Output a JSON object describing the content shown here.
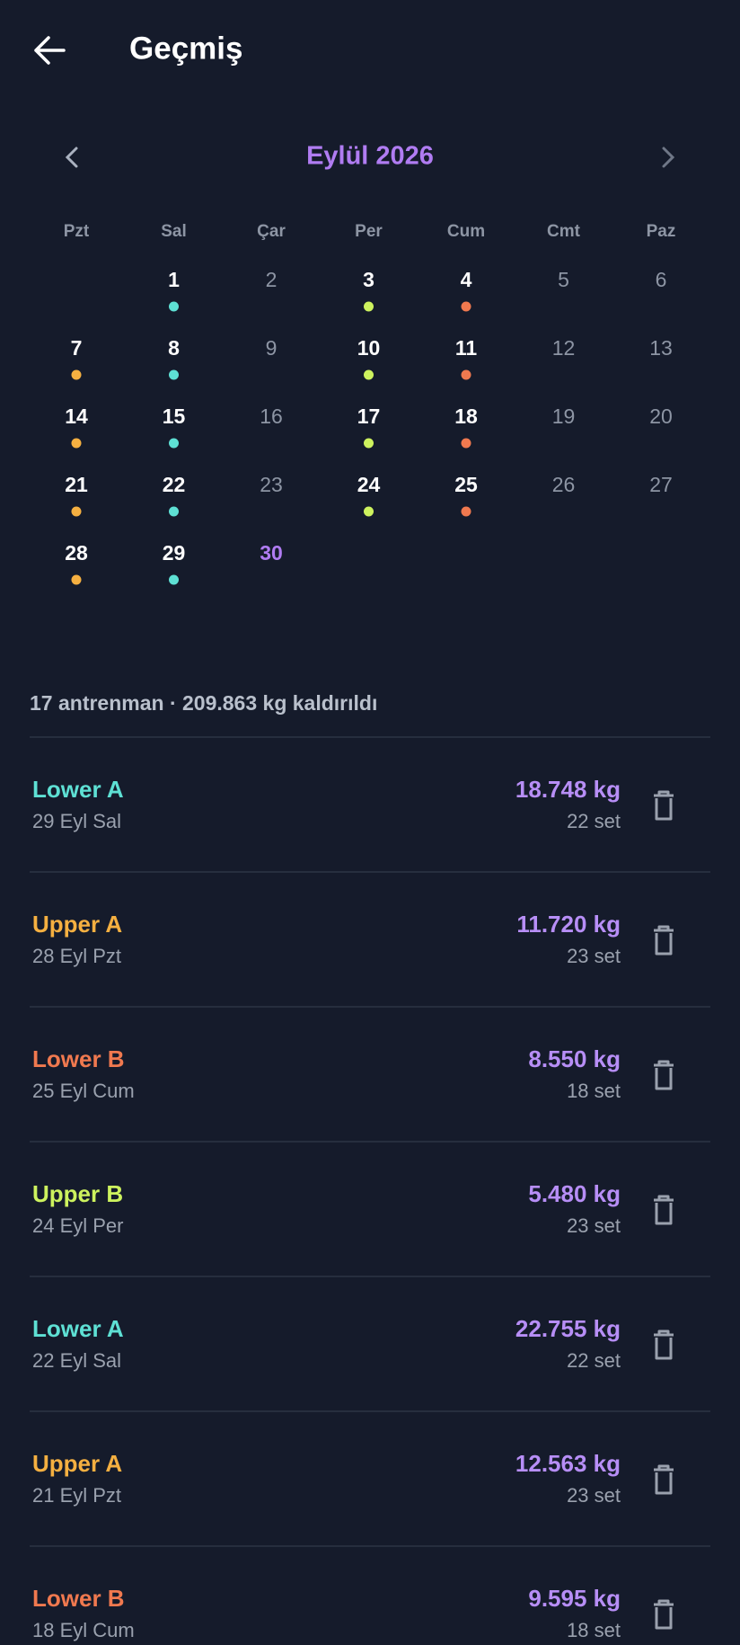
{
  "header": {
    "title": "Geçmiş"
  },
  "calendar": {
    "month": "Eylül 2026",
    "weekdays": [
      "Pzt",
      "Sal",
      "Çar",
      "Per",
      "Cum",
      "Cmt",
      "Paz"
    ],
    "weeks": [
      [
        null,
        {
          "day": "1",
          "dot": "#5ee0d4"
        },
        {
          "day": "2"
        },
        {
          "day": "3",
          "dot": "#cdf25e"
        },
        {
          "day": "4",
          "dot": "#f0794f"
        },
        {
          "day": "5"
        },
        {
          "day": "6"
        }
      ],
      [
        {
          "day": "7",
          "dot": "#f5b041"
        },
        {
          "day": "8",
          "dot": "#5ee0d4"
        },
        {
          "day": "9"
        },
        {
          "day": "10",
          "dot": "#cdf25e"
        },
        {
          "day": "11",
          "dot": "#f0794f"
        },
        {
          "day": "12"
        },
        {
          "day": "13"
        }
      ],
      [
        {
          "day": "14",
          "dot": "#f5b041"
        },
        {
          "day": "15",
          "dot": "#5ee0d4"
        },
        {
          "day": "16"
        },
        {
          "day": "17",
          "dot": "#cdf25e"
        },
        {
          "day": "18",
          "dot": "#f0794f"
        },
        {
          "day": "19"
        },
        {
          "day": "20"
        }
      ],
      [
        {
          "day": "21",
          "dot": "#f5b041"
        },
        {
          "day": "22",
          "dot": "#5ee0d4"
        },
        {
          "day": "23"
        },
        {
          "day": "24",
          "dot": "#cdf25e"
        },
        {
          "day": "25",
          "dot": "#f0794f"
        },
        {
          "day": "26"
        },
        {
          "day": "27"
        }
      ],
      [
        {
          "day": "28",
          "dot": "#f5b041"
        },
        {
          "day": "29",
          "dot": "#5ee0d4"
        },
        {
          "day": "30",
          "today": true
        }
      ]
    ]
  },
  "summary": "17 antrenman · 209.863 kg kaldırıldı",
  "sessions": [
    {
      "name": "Lower A",
      "color": "#5ee0d4",
      "date": "29 Eyl Sal",
      "volume": "18.748 kg",
      "sets": "22 set"
    },
    {
      "name": "Upper A",
      "color": "#f5b041",
      "date": "28 Eyl Pzt",
      "volume": "11.720 kg",
      "sets": "23 set"
    },
    {
      "name": "Lower B",
      "color": "#f0794f",
      "date": "25 Eyl Cum",
      "volume": "8.550 kg",
      "sets": "18 set"
    },
    {
      "name": "Upper B",
      "color": "#cdf25e",
      "date": "24 Eyl Per",
      "volume": "5.480 kg",
      "sets": "23 set"
    },
    {
      "name": "Lower A",
      "color": "#5ee0d4",
      "date": "22 Eyl Sal",
      "volume": "22.755 kg",
      "sets": "22 set"
    },
    {
      "name": "Upper A",
      "color": "#f5b041",
      "date": "21 Eyl Pzt",
      "volume": "12.563 kg",
      "sets": "23 set"
    },
    {
      "name": "Lower B",
      "color": "#f0794f",
      "date": "18 Eyl Cum",
      "volume": "9.595 kg",
      "sets": "18 set"
    }
  ]
}
